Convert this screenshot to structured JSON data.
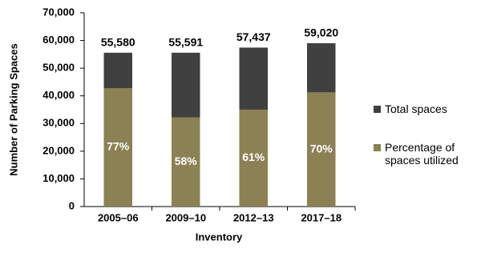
{
  "chart_data": {
    "type": "overlay-bar",
    "x_label": "Inventory",
    "y_label": "Number of Parking Spaces",
    "categories": [
      "2005–06",
      "2009–10",
      "2012–13",
      "2017–18"
    ],
    "series": [
      {
        "name": "Total spaces",
        "color": "#404040",
        "values": [
          55580,
          55591,
          57437,
          59020
        ],
        "value_labels": [
          "55,580",
          "55,591",
          "57,437",
          "59,020"
        ]
      },
      {
        "name": "Percentage of spaces utilized",
        "color": "#8c8155",
        "values": [
          77,
          58,
          61,
          70
        ],
        "value_labels": [
          "77%",
          "58%",
          "61%",
          "70%"
        ]
      }
    ],
    "ylim": [
      0,
      70000
    ],
    "yticks": [
      0,
      {
        "value": 10000,
        "label": "10,000"
      },
      {
        "value": 20000,
        "label": "20,000"
      },
      {
        "value": 30000,
        "label": "30,000"
      },
      {
        "value": 40000,
        "label": "40,000"
      },
      {
        "value": 50000,
        "label": "50,000"
      },
      {
        "value": 60000,
        "label": "60,000"
      },
      {
        "value": 70000,
        "label": "70,000"
      }
    ],
    "legend": "right"
  }
}
